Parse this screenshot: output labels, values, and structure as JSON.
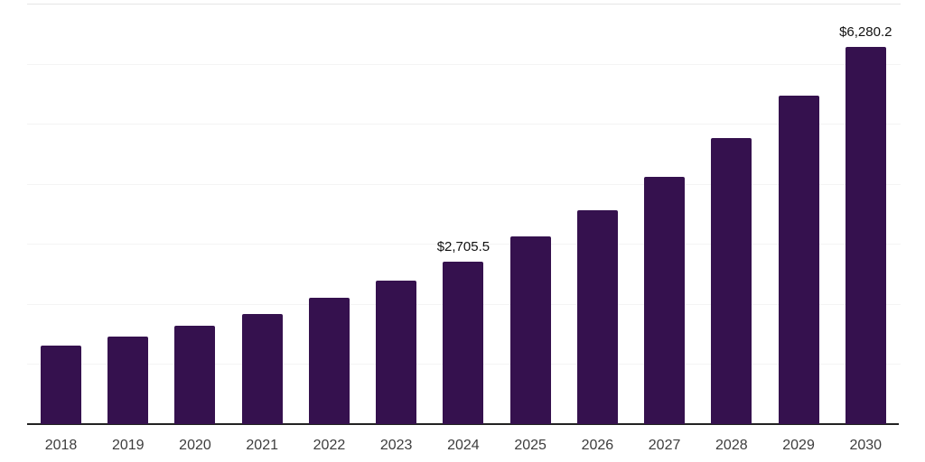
{
  "chart_data": {
    "type": "bar",
    "title": "",
    "xlabel": "",
    "ylabel": "",
    "categories": [
      "2018",
      "2019",
      "2020",
      "2021",
      "2022",
      "2023",
      "2024",
      "2025",
      "2026",
      "2027",
      "2028",
      "2029",
      "2030"
    ],
    "values": [
      1300,
      1452,
      1640,
      1835,
      2102,
      2388,
      2705.5,
      3118,
      3558,
      4113,
      4760,
      5467,
      6280.2
    ],
    "data_labels": [
      {
        "category": "2024",
        "text": "$2,705.5"
      },
      {
        "category": "2030",
        "text": "$6,280.2"
      }
    ],
    "ylim": [
      0,
      7000
    ],
    "gridline_step": 1000,
    "grid": "horizontal gridlines only, no y-axis tick labels",
    "legend": "none",
    "colors": {
      "bar": "#35114E",
      "axis_line": "#222222",
      "gridline": "#f4f4f4",
      "top_gridline": "#e5e5e5",
      "tick_label": "#3d3d3d",
      "data_label": "#111111"
    }
  }
}
